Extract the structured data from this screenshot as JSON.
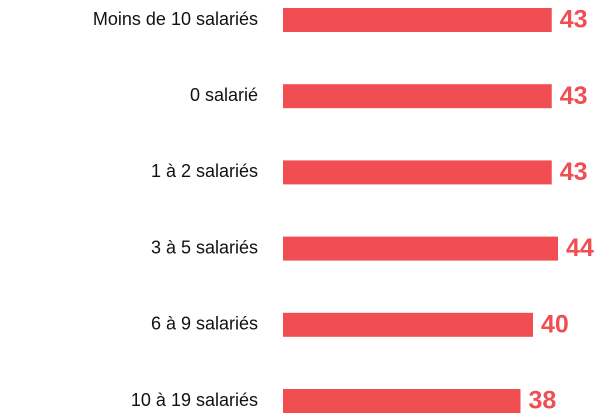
{
  "chart_data": {
    "type": "bar",
    "orientation": "horizontal",
    "categories": [
      "Moins de 10 salariés",
      "0 salarié",
      "1 à 2 salariés",
      "3 à 5 salariés",
      "6 à 9 salariés",
      "10 à 19 salariés"
    ],
    "values": [
      43,
      43,
      43,
      44,
      40,
      38
    ],
    "color": "#f04e52"
  }
}
